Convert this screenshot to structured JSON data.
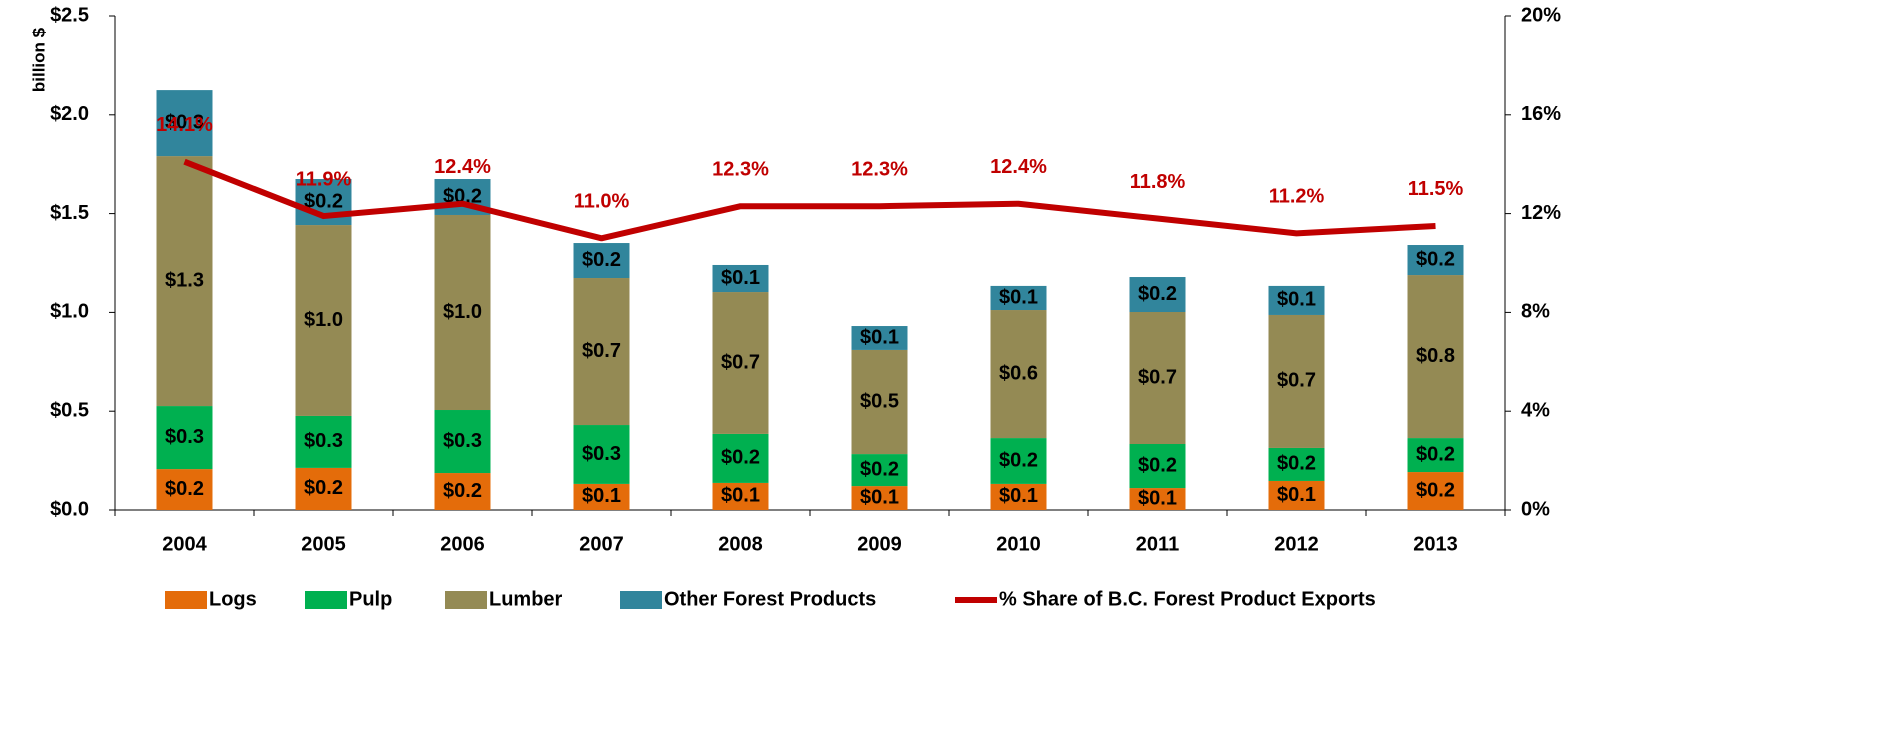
{
  "chart_data": {
    "type": "bar",
    "stacked": true,
    "y_label": "billion $",
    "categories": [
      "2004",
      "2005",
      "2006",
      "2007",
      "2008",
      "2009",
      "2010",
      "2011",
      "2012",
      "2013"
    ],
    "ylim": [
      0,
      2.5
    ],
    "yticks": [
      {
        "value": 0,
        "label": "$0.0"
      },
      {
        "value": 0.5,
        "label": "$0.5"
      },
      {
        "value": 1.0,
        "label": "$1.0"
      },
      {
        "value": 1.5,
        "label": "$1.5"
      },
      {
        "value": 2.0,
        "label": "$2.0"
      },
      {
        "value": 2.5,
        "label": "$2.5"
      }
    ],
    "y2lim": [
      0,
      20
    ],
    "y2ticks": [
      {
        "value": 0,
        "label": "0%"
      },
      {
        "value": 4,
        "label": "4%"
      },
      {
        "value": 8,
        "label": "8%"
      },
      {
        "value": 12,
        "label": "12%"
      },
      {
        "value": 16,
        "label": "16%"
      },
      {
        "value": 20,
        "label": "20%"
      }
    ],
    "series": [
      {
        "name": "Logs",
        "color": "#e46c0a",
        "values": [
          0.207,
          0.213,
          0.187,
          0.132,
          0.137,
          0.121,
          0.132,
          0.111,
          0.147,
          0.192
        ],
        "value_labels": [
          "$0.2",
          "$0.2",
          "$0.2",
          "$0.1",
          "$0.1",
          "$0.1",
          "$0.1",
          "$0.1",
          "$0.1",
          "$0.2"
        ]
      },
      {
        "name": "Pulp",
        "color": "#00b050",
        "values": [
          0.319,
          0.263,
          0.319,
          0.298,
          0.248,
          0.162,
          0.232,
          0.223,
          0.167,
          0.172
        ],
        "value_labels": [
          "$0.3",
          "$0.3",
          "$0.3",
          "$0.3",
          "$0.2",
          "$0.2",
          "$0.2",
          "$0.2",
          "$0.2",
          "$0.2"
        ]
      },
      {
        "name": "Lumber",
        "color": "#948a54",
        "values": [
          1.265,
          0.966,
          0.987,
          0.744,
          0.718,
          0.527,
          0.648,
          0.668,
          0.673,
          0.825
        ],
        "value_labels": [
          "$1.3",
          "$1.0",
          "$1.0",
          "$0.7",
          "$0.7",
          "$0.5",
          "$0.6",
          "$0.7",
          "$0.7",
          "$0.8"
        ]
      },
      {
        "name": "Other Forest Products",
        "color": "#31859c",
        "values": [
          0.334,
          0.233,
          0.182,
          0.177,
          0.137,
          0.121,
          0.122,
          0.177,
          0.147,
          0.152
        ],
        "value_labels": [
          "$0.3",
          "$0.2",
          "$0.2",
          "$0.2",
          "$0.1",
          "$0.1",
          "$0.1",
          "$0.2",
          "$0.1",
          "$0.2"
        ]
      },
      {
        "name": "% Share of B.C. Forest Product Exports",
        "type": "line",
        "axis": "y2",
        "color": "#c00000",
        "values": [
          14.1,
          11.9,
          12.4,
          11.0,
          12.3,
          12.3,
          12.4,
          11.8,
          11.2,
          11.5
        ],
        "value_labels": [
          "14.1%",
          "11.9%",
          "12.4%",
          "11.0%",
          "12.3%",
          "12.3%",
          "12.4%",
          "11.8%",
          "11.2%",
          "11.5%"
        ]
      }
    ]
  }
}
